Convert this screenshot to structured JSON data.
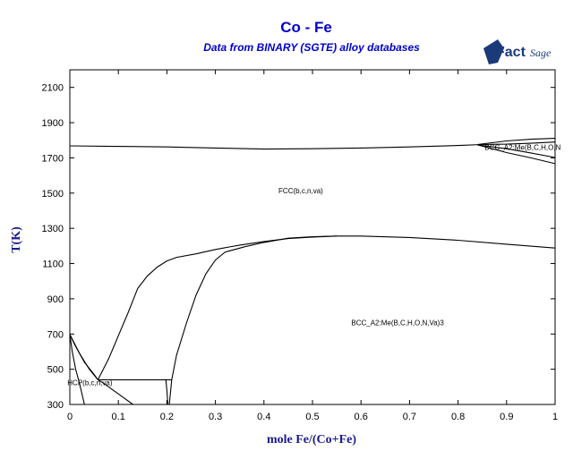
{
  "chart_data": {
    "type": "line",
    "title": "Co - Fe",
    "subtitle": "Data from BINARY (SGTE) alloy databases",
    "xlabel": "mole Fe/(Co+Fe)",
    "ylabel": "T(K)",
    "xlim": [
      0,
      1
    ],
    "ylim": [
      300,
      2200
    ],
    "x_ticks": [
      "0",
      "0.1",
      "0.2",
      "0.3",
      "0.4",
      "0.5",
      "0.6",
      "0.7",
      "0.8",
      "0.9",
      "1"
    ],
    "y_ticks": [
      "300",
      "500",
      "700",
      "900",
      "1100",
      "1300",
      "1500",
      "1700",
      "1900",
      "2100"
    ],
    "grid": false,
    "legend": "none",
    "phase_labels": [
      {
        "text": "FCC(b,c,n,va)",
        "x": 0.43,
        "y": 1500
      },
      {
        "text": "BCC_A2:Me(B,C,H,O,N,Va)3",
        "x": 0.58,
        "y": 750
      },
      {
        "text": "BCC_A2:Me(B,C,H,O,N",
        "x": 0.855,
        "y": 1745
      },
      {
        "text": "HCP(b,c,n,va)",
        "x": -0.005,
        "y": 410
      }
    ],
    "series": [
      {
        "points": [
          [
            0,
            1768
          ],
          [
            0.1,
            1765
          ],
          [
            0.2,
            1762
          ],
          [
            0.3,
            1756
          ],
          [
            0.4,
            1750
          ],
          [
            0.5,
            1752
          ],
          [
            0.6,
            1756
          ],
          [
            0.7,
            1762
          ],
          [
            0.8,
            1770
          ],
          [
            0.85,
            1776
          ]
        ]
      },
      {
        "points": [
          [
            0.84,
            1776
          ],
          [
            0.9,
            1796
          ],
          [
            0.95,
            1806
          ],
          [
            1.0,
            1811
          ]
        ]
      },
      {
        "points": [
          [
            0.84,
            1776
          ],
          [
            0.9,
            1778
          ],
          [
            0.95,
            1783
          ],
          [
            1.0,
            1790
          ]
        ]
      },
      {
        "points": [
          [
            0.84,
            1774
          ],
          [
            0.9,
            1730
          ],
          [
            0.95,
            1700
          ],
          [
            1.0,
            1667
          ]
        ]
      },
      {
        "points": [
          [
            0.84,
            1774
          ],
          [
            0.9,
            1752
          ],
          [
            0.95,
            1728
          ],
          [
            1.0,
            1702
          ]
        ]
      },
      {
        "points": [
          [
            0.058,
            440
          ],
          [
            0.08,
            560
          ],
          [
            0.1,
            690
          ],
          [
            0.12,
            820
          ],
          [
            0.14,
            960
          ],
          [
            0.16,
            1030
          ],
          [
            0.18,
            1080
          ],
          [
            0.2,
            1115
          ],
          [
            0.22,
            1135
          ],
          [
            0.26,
            1155
          ],
          [
            0.3,
            1180
          ],
          [
            0.35,
            1205
          ],
          [
            0.4,
            1225
          ],
          [
            0.45,
            1242
          ],
          [
            0.5,
            1250
          ],
          [
            0.55,
            1256
          ],
          [
            0.6,
            1256
          ],
          [
            0.7,
            1248
          ],
          [
            0.8,
            1232
          ],
          [
            0.9,
            1210
          ],
          [
            1.0,
            1188
          ]
        ]
      },
      {
        "points": [
          [
            0.205,
            300
          ],
          [
            0.21,
            440
          ],
          [
            0.22,
            580
          ],
          [
            0.24,
            760
          ],
          [
            0.26,
            920
          ],
          [
            0.28,
            1040
          ],
          [
            0.3,
            1120
          ],
          [
            0.32,
            1165
          ],
          [
            0.36,
            1195
          ],
          [
            0.4,
            1220
          ],
          [
            0.45,
            1244
          ],
          [
            0.5,
            1252
          ],
          [
            0.55,
            1256
          ]
        ]
      },
      {
        "points": [
          [
            0.058,
            440
          ],
          [
            0.21,
            440
          ]
        ]
      },
      {
        "points": [
          [
            0,
            698
          ],
          [
            0.02,
            590
          ],
          [
            0.04,
            500
          ],
          [
            0.058,
            440
          ]
        ]
      },
      {
        "points": [
          [
            0,
            698
          ],
          [
            0.005,
            600
          ],
          [
            0.012,
            500
          ],
          [
            0.02,
            420
          ],
          [
            0.03,
            300
          ]
        ]
      },
      {
        "points": [
          [
            0,
            698
          ],
          [
            0.01,
            640
          ],
          [
            0.03,
            540
          ],
          [
            0.05,
            470
          ],
          [
            0.058,
            440
          ]
        ]
      },
      {
        "points": [
          [
            0.058,
            440
          ],
          [
            0.07,
            420
          ],
          [
            0.09,
            380
          ],
          [
            0.11,
            340
          ],
          [
            0.13,
            300
          ]
        ]
      },
      {
        "points": [
          [
            0.198,
            440
          ],
          [
            0.2,
            380
          ],
          [
            0.202,
            300
          ]
        ]
      }
    ]
  },
  "logo": {
    "fact": "Fact",
    "sage": "Sage"
  }
}
